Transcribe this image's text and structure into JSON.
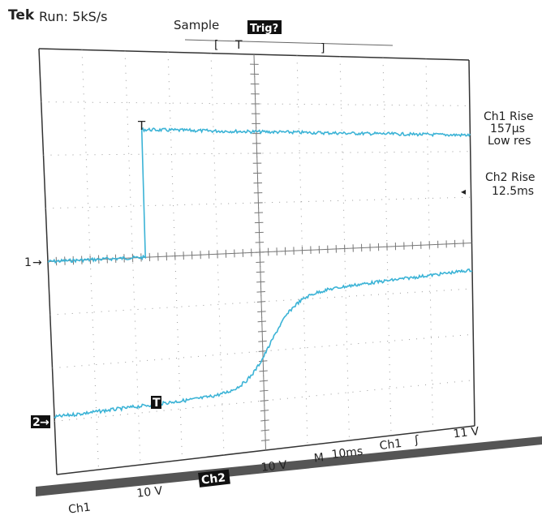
{
  "header": {
    "brand": "Tek",
    "status": "Run: 5kS/s",
    "mode": "Sample",
    "trigger_state": "Trig?",
    "trigger_marker": "T"
  },
  "readouts": [
    {
      "line1": "Ch1 Rise",
      "line2": "157µs",
      "line3": "Low res"
    },
    {
      "line1": "Ch2 Rise",
      "line2": "12.5ms"
    }
  ],
  "channels": [
    {
      "marker": "1",
      "trace_marker": "T"
    },
    {
      "marker": "2",
      "trace_marker": "T"
    }
  ],
  "footer": {
    "ch1": "Ch1",
    "ch1_scale": "10 V",
    "ch2": "Ch2",
    "ch2_scale": "10 V",
    "timebase_label": "M",
    "timebase": "10ms",
    "trigger_source": "Ch1",
    "trigger_slope": "ʃ",
    "trigger_level": "11 V"
  }
}
